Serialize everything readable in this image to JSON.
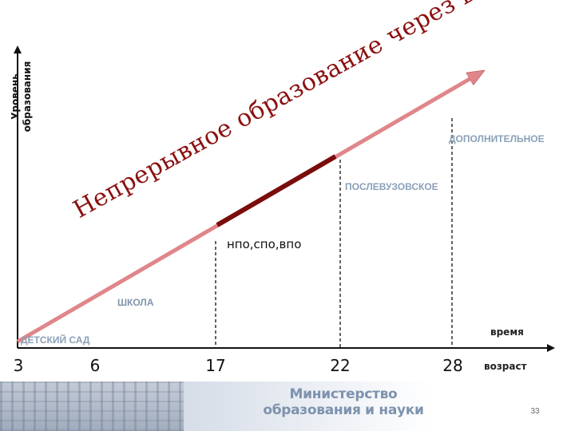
{
  "y_axis_title": [
    "Уровень",
    "образования"
  ],
  "slogan": "Непрерывное образование через всю жизнь",
  "stages": {
    "kindergarten": "ДЕТСКИЙ САД",
    "school": "ШКОЛА",
    "npo_spo_vpo": "нпо,спо,впо",
    "postgraduate": "ПОСЛЕВУЗОВСКОЕ",
    "additional": "ДОПОЛНИТЕЛЬНОЕ"
  },
  "x_axis_title": "время",
  "tick_caption": "возраст",
  "ticks": [
    "3",
    "6",
    "17",
    "22",
    "28"
  ],
  "footer": {
    "ministry": [
      "Министерство",
      "образования и науки"
    ],
    "page_number": "33"
  },
  "colors": {
    "arrow": "#e0868a",
    "highlight_segment": "#7a0c0c",
    "stage_label": "#8aa0b8",
    "slogan": "#8b1010"
  }
}
